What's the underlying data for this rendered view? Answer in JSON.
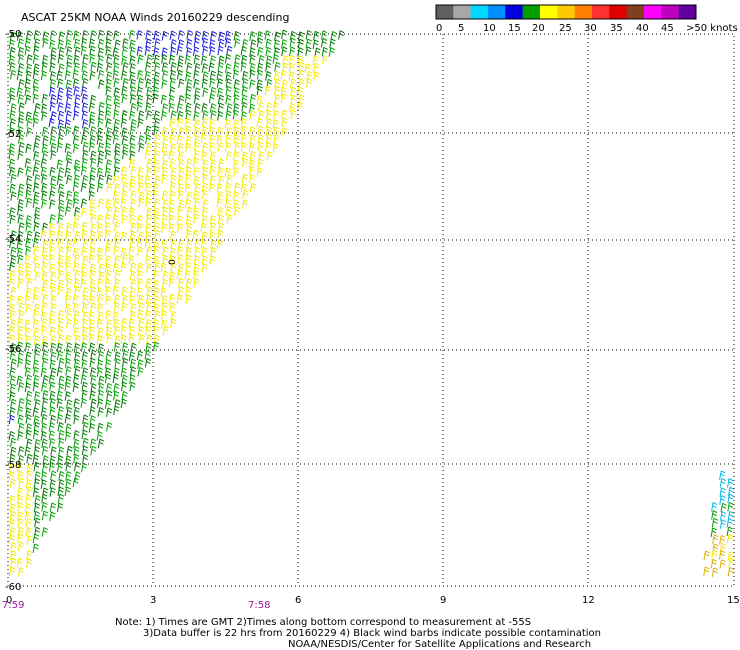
{
  "title": "ASCAT 25KM NOAA Winds 20160229 descending",
  "legend": {
    "colors": [
      "#606060",
      "#a8a8a8",
      "#00d8ff",
      "#0090ff",
      "#0000e0",
      "#00a000",
      "#ffff00",
      "#ffc800",
      "#ff8000",
      "#ff3030",
      "#e00000",
      "#804020",
      "#ff00ff",
      "#c000c0",
      "#6000a0"
    ],
    "labels": [
      "0",
      "5",
      "10",
      "15",
      "20",
      "25",
      "30",
      "35",
      "40",
      "45",
      ">50 knots"
    ]
  },
  "latitude_labels": [
    "-50",
    "-52",
    "-54",
    "-56",
    "-58",
    "-60"
  ],
  "longitude_labels": [
    "0",
    "3",
    "6",
    "9",
    "12",
    "15"
  ],
  "time_labels": [
    "7:59",
    "7:58"
  ],
  "map_marker": "0",
  "notes": [
    "Note: 1) Times are GMT 2)Times along bottom correspond to measurement at -55S",
    "3)Data buffer is 22 hrs from 20160229 4) Black wind barbs indicate possible contamination",
    "NOAA/NESDIS/Center for Satellite Applications and Research"
  ],
  "barb_colors": {
    "green": "#00a000",
    "dark_green": "#007a00",
    "yellow": "#f4e800",
    "gold": "#d8b000",
    "blue": "#1c1ce0",
    "cyan": "#00b8e8"
  }
}
